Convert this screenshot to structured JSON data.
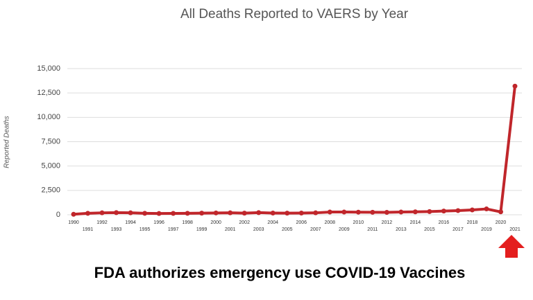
{
  "chart_data": {
    "type": "line",
    "title": "All Deaths Reported to VAERS by Year",
    "y_label": "Reported Deaths",
    "annotation": "FDA authorizes emergency use COVID-19 Vaccines",
    "categories": [
      "1990",
      "1991",
      "1992",
      "1993",
      "1994",
      "1995",
      "1996",
      "1997",
      "1998",
      "1999",
      "2000",
      "2001",
      "2002",
      "2003",
      "2004",
      "2005",
      "2006",
      "2007",
      "2008",
      "2009",
      "2010",
      "2011",
      "2012",
      "2013",
      "2014",
      "2015",
      "2016",
      "2017",
      "2018",
      "2019",
      "2020",
      "2021"
    ],
    "values": [
      50,
      150,
      200,
      220,
      200,
      150,
      130,
      140,
      150,
      170,
      190,
      200,
      170,
      220,
      180,
      170,
      180,
      200,
      280,
      280,
      270,
      260,
      250,
      280,
      300,
      330,
      380,
      430,
      500,
      600,
      300,
      13200
    ],
    "color": "#c0262b",
    "ylim": [
      0,
      15000
    ],
    "yticks": [
      0,
      {
        "value": 2500,
        "label": "2,500"
      },
      {
        "value": 5000,
        "label": "5,000"
      },
      {
        "value": 7500,
        "label": "7,500"
      },
      {
        "value": 10000,
        "label": "10,000"
      },
      {
        "value": 12500,
        "label": "12,500"
      },
      {
        "value": 15000,
        "label": "15,000"
      }
    ],
    "grid": true
  }
}
